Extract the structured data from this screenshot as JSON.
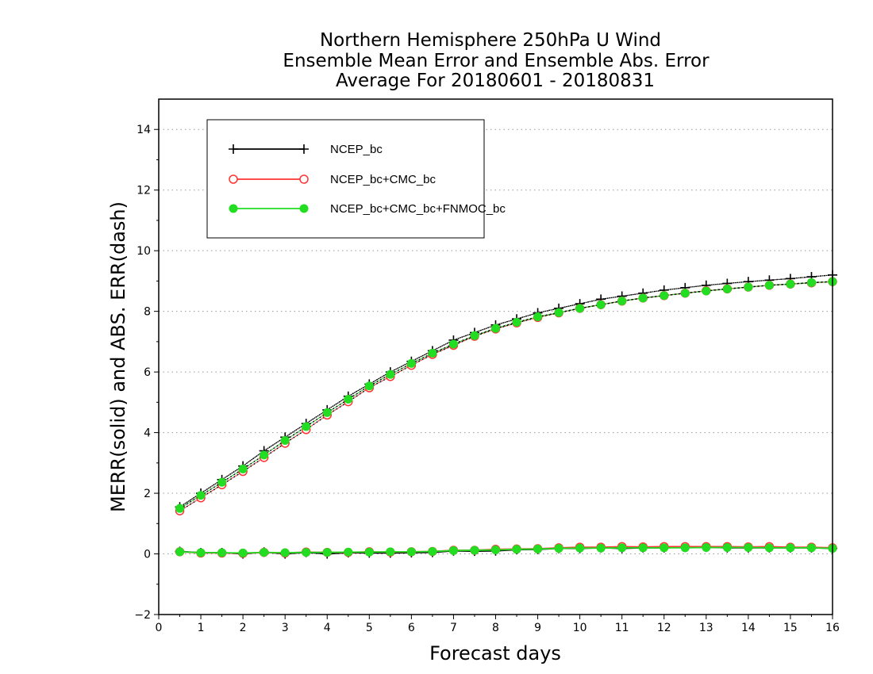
{
  "chart_data": {
    "type": "line",
    "title": [
      "Northern Hemisphere 250hPa U Wind",
      "Ensemble Mean Error and Ensemble Abs. Error",
      "Average For 20180601 - 20180831"
    ],
    "xlabel": "Forecast days",
    "ylabel": "MERR(solid) and ABS. ERR(dash)",
    "xlim": [
      0,
      16
    ],
    "ylim": [
      -2,
      15
    ],
    "x_ticks": [
      0,
      1,
      2,
      3,
      4,
      5,
      6,
      7,
      8,
      9,
      10,
      11,
      12,
      13,
      14,
      15,
      16
    ],
    "y_ticks": [
      -2,
      0,
      2,
      4,
      6,
      8,
      10,
      12,
      14
    ],
    "grid": "horizontal dotted",
    "legend_position": "top-left",
    "x": [
      0.5,
      1,
      1.5,
      2,
      2.5,
      3,
      3.5,
      4,
      4.5,
      5,
      5.5,
      6,
      6.5,
      7,
      7.5,
      8,
      8.5,
      9,
      9.5,
      10,
      10.5,
      11,
      11.5,
      12,
      12.5,
      13,
      13.5,
      14,
      14.5,
      15,
      15.5,
      16
    ],
    "series": [
      {
        "name": "NCEP_bc",
        "color": "#000000",
        "marker": "plus",
        "abs_err": [
          1.55,
          2.0,
          2.45,
          2.9,
          3.4,
          3.85,
          4.3,
          4.75,
          5.2,
          5.6,
          6.0,
          6.35,
          6.7,
          7.05,
          7.3,
          7.55,
          7.75,
          7.95,
          8.1,
          8.25,
          8.4,
          8.5,
          8.6,
          8.7,
          8.78,
          8.86,
          8.92,
          8.98,
          9.03,
          9.08,
          9.14,
          9.2
        ],
        "mean_err": [
          0.08,
          0.04,
          0.04,
          0.0,
          0.06,
          0.0,
          0.05,
          0.0,
          0.04,
          0.03,
          0.03,
          0.04,
          0.05,
          0.1,
          0.09,
          0.1,
          0.14,
          0.15,
          0.18,
          0.18,
          0.2,
          0.18,
          0.2,
          0.2,
          0.22,
          0.22,
          0.2,
          0.2,
          0.2,
          0.2,
          0.2,
          0.18
        ]
      },
      {
        "name": "NCEP_bc+CMC_bc",
        "color": "#ff3333",
        "marker": "open-circle",
        "abs_err": [
          1.42,
          1.85,
          2.28,
          2.72,
          3.18,
          3.65,
          4.1,
          4.58,
          5.02,
          5.48,
          5.85,
          6.22,
          6.58,
          6.88,
          7.18,
          7.42,
          7.62,
          7.8,
          7.95,
          8.1,
          8.22,
          8.34,
          8.44,
          8.52,
          8.6,
          8.68,
          8.74,
          8.8,
          8.86,
          8.9,
          8.94,
          8.98
        ],
        "mean_err": [
          0.07,
          0.03,
          0.03,
          0.02,
          0.05,
          0.03,
          0.06,
          0.05,
          0.05,
          0.07,
          0.06,
          0.07,
          0.08,
          0.12,
          0.12,
          0.15,
          0.16,
          0.17,
          0.2,
          0.22,
          0.22,
          0.24,
          0.23,
          0.24,
          0.24,
          0.24,
          0.24,
          0.23,
          0.24,
          0.22,
          0.22,
          0.2
        ]
      },
      {
        "name": "NCEP_bc+CMC_bc+FNMOC_bc",
        "color": "#22dd22",
        "marker": "filled-circle",
        "abs_err": [
          1.5,
          1.93,
          2.36,
          2.8,
          3.26,
          3.74,
          4.2,
          4.66,
          5.1,
          5.54,
          5.92,
          6.28,
          6.62,
          6.92,
          7.2,
          7.44,
          7.64,
          7.82,
          7.96,
          8.1,
          8.22,
          8.34,
          8.44,
          8.52,
          8.6,
          8.67,
          8.74,
          8.8,
          8.86,
          8.9,
          8.95,
          8.98
        ],
        "mean_err": [
          0.07,
          0.04,
          0.04,
          0.03,
          0.05,
          0.04,
          0.05,
          0.05,
          0.06,
          0.06,
          0.07,
          0.07,
          0.08,
          0.11,
          0.12,
          0.13,
          0.15,
          0.16,
          0.18,
          0.19,
          0.19,
          0.2,
          0.2,
          0.2,
          0.2,
          0.21,
          0.21,
          0.21,
          0.2,
          0.2,
          0.2,
          0.18
        ]
      }
    ]
  }
}
